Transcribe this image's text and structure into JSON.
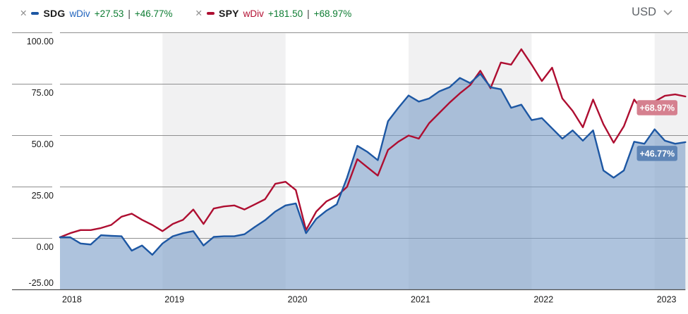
{
  "header": {
    "legend": [
      {
        "remove_icon": "✕",
        "symbol": "SDG",
        "mode": "wDiv",
        "change": "+27.53",
        "separator": "|",
        "change_pct": "+46.77%",
        "color": "#1d57a3",
        "mode_color": "#2164be"
      },
      {
        "remove_icon": "✕",
        "symbol": "SPY",
        "mode": "wDiv",
        "change": "+181.50",
        "separator": "|",
        "change_pct": "+68.97%",
        "color": "#ae0e31",
        "mode_color": "#b30f31"
      }
    ],
    "currency": "USD"
  },
  "chart_data": {
    "type": "line",
    "title": "",
    "xlabel": "",
    "ylabel": "",
    "x_labels": [
      "2018",
      "2019",
      "2020",
      "2021",
      "2022",
      "2023"
    ],
    "year_tick_indices": [
      0,
      10,
      22,
      34,
      46,
      58
    ],
    "shaded_labels": [
      "2019",
      "2021",
      "2023"
    ],
    "y_ticks": [
      100,
      75,
      50,
      25,
      0,
      -25
    ],
    "y_tick_labels": [
      "100.00",
      "75.00",
      "50.00",
      "25.00",
      "0.00",
      "-25.00"
    ],
    "ylim": [
      -25,
      100
    ],
    "unit": "%",
    "legend_position": "top-left",
    "grid": true,
    "series": [
      {
        "name": "SDG",
        "style": "area",
        "color": "#1d57a3",
        "fill": "rgba(125,158,200,0.62)",
        "end_badge": "+46.77%",
        "badge_color": "#5d84b6",
        "values": [
          0.5,
          0.5,
          -2.5,
          -3,
          1.5,
          1.2,
          1,
          -6,
          -3.5,
          -8,
          -2.5,
          1,
          2.5,
          3.5,
          -3.5,
          0.7,
          1,
          1,
          2,
          5.5,
          8.8,
          13,
          16,
          17,
          2.5,
          9.5,
          13.5,
          16.5,
          29.5,
          45,
          42,
          38,
          57,
          63.5,
          69.5,
          66.5,
          68,
          71.5,
          73.5,
          78,
          75.5,
          80,
          73.5,
          72.5,
          63.5,
          65,
          57.5,
          58.5,
          53.5,
          48.5,
          52.5,
          47.5,
          52.5,
          33,
          29.5,
          33,
          47,
          46,
          53,
          47.5,
          46,
          46.77
        ]
      },
      {
        "name": "SPY",
        "style": "line",
        "color": "#ae0e31",
        "end_badge": "+68.97%",
        "badge_color": "#d5808f",
        "values": [
          0.5,
          2.5,
          4,
          4,
          5,
          6.5,
          10.5,
          12,
          9,
          6.5,
          3.5,
          7,
          9,
          14,
          7,
          14.5,
          15.5,
          16,
          14,
          16.5,
          19,
          26.5,
          27.5,
          23.5,
          4,
          13,
          18,
          20.5,
          25,
          38.5,
          34.5,
          30.5,
          43,
          47,
          50,
          48.5,
          56,
          61,
          66,
          70.5,
          74.5,
          81.5,
          73,
          85.5,
          84.5,
          92,
          84.5,
          76.5,
          83,
          68,
          62,
          54,
          67.5,
          55.5,
          46.5,
          54.5,
          67.5,
          61,
          66.5,
          69.3,
          70,
          69
        ]
      }
    ]
  }
}
